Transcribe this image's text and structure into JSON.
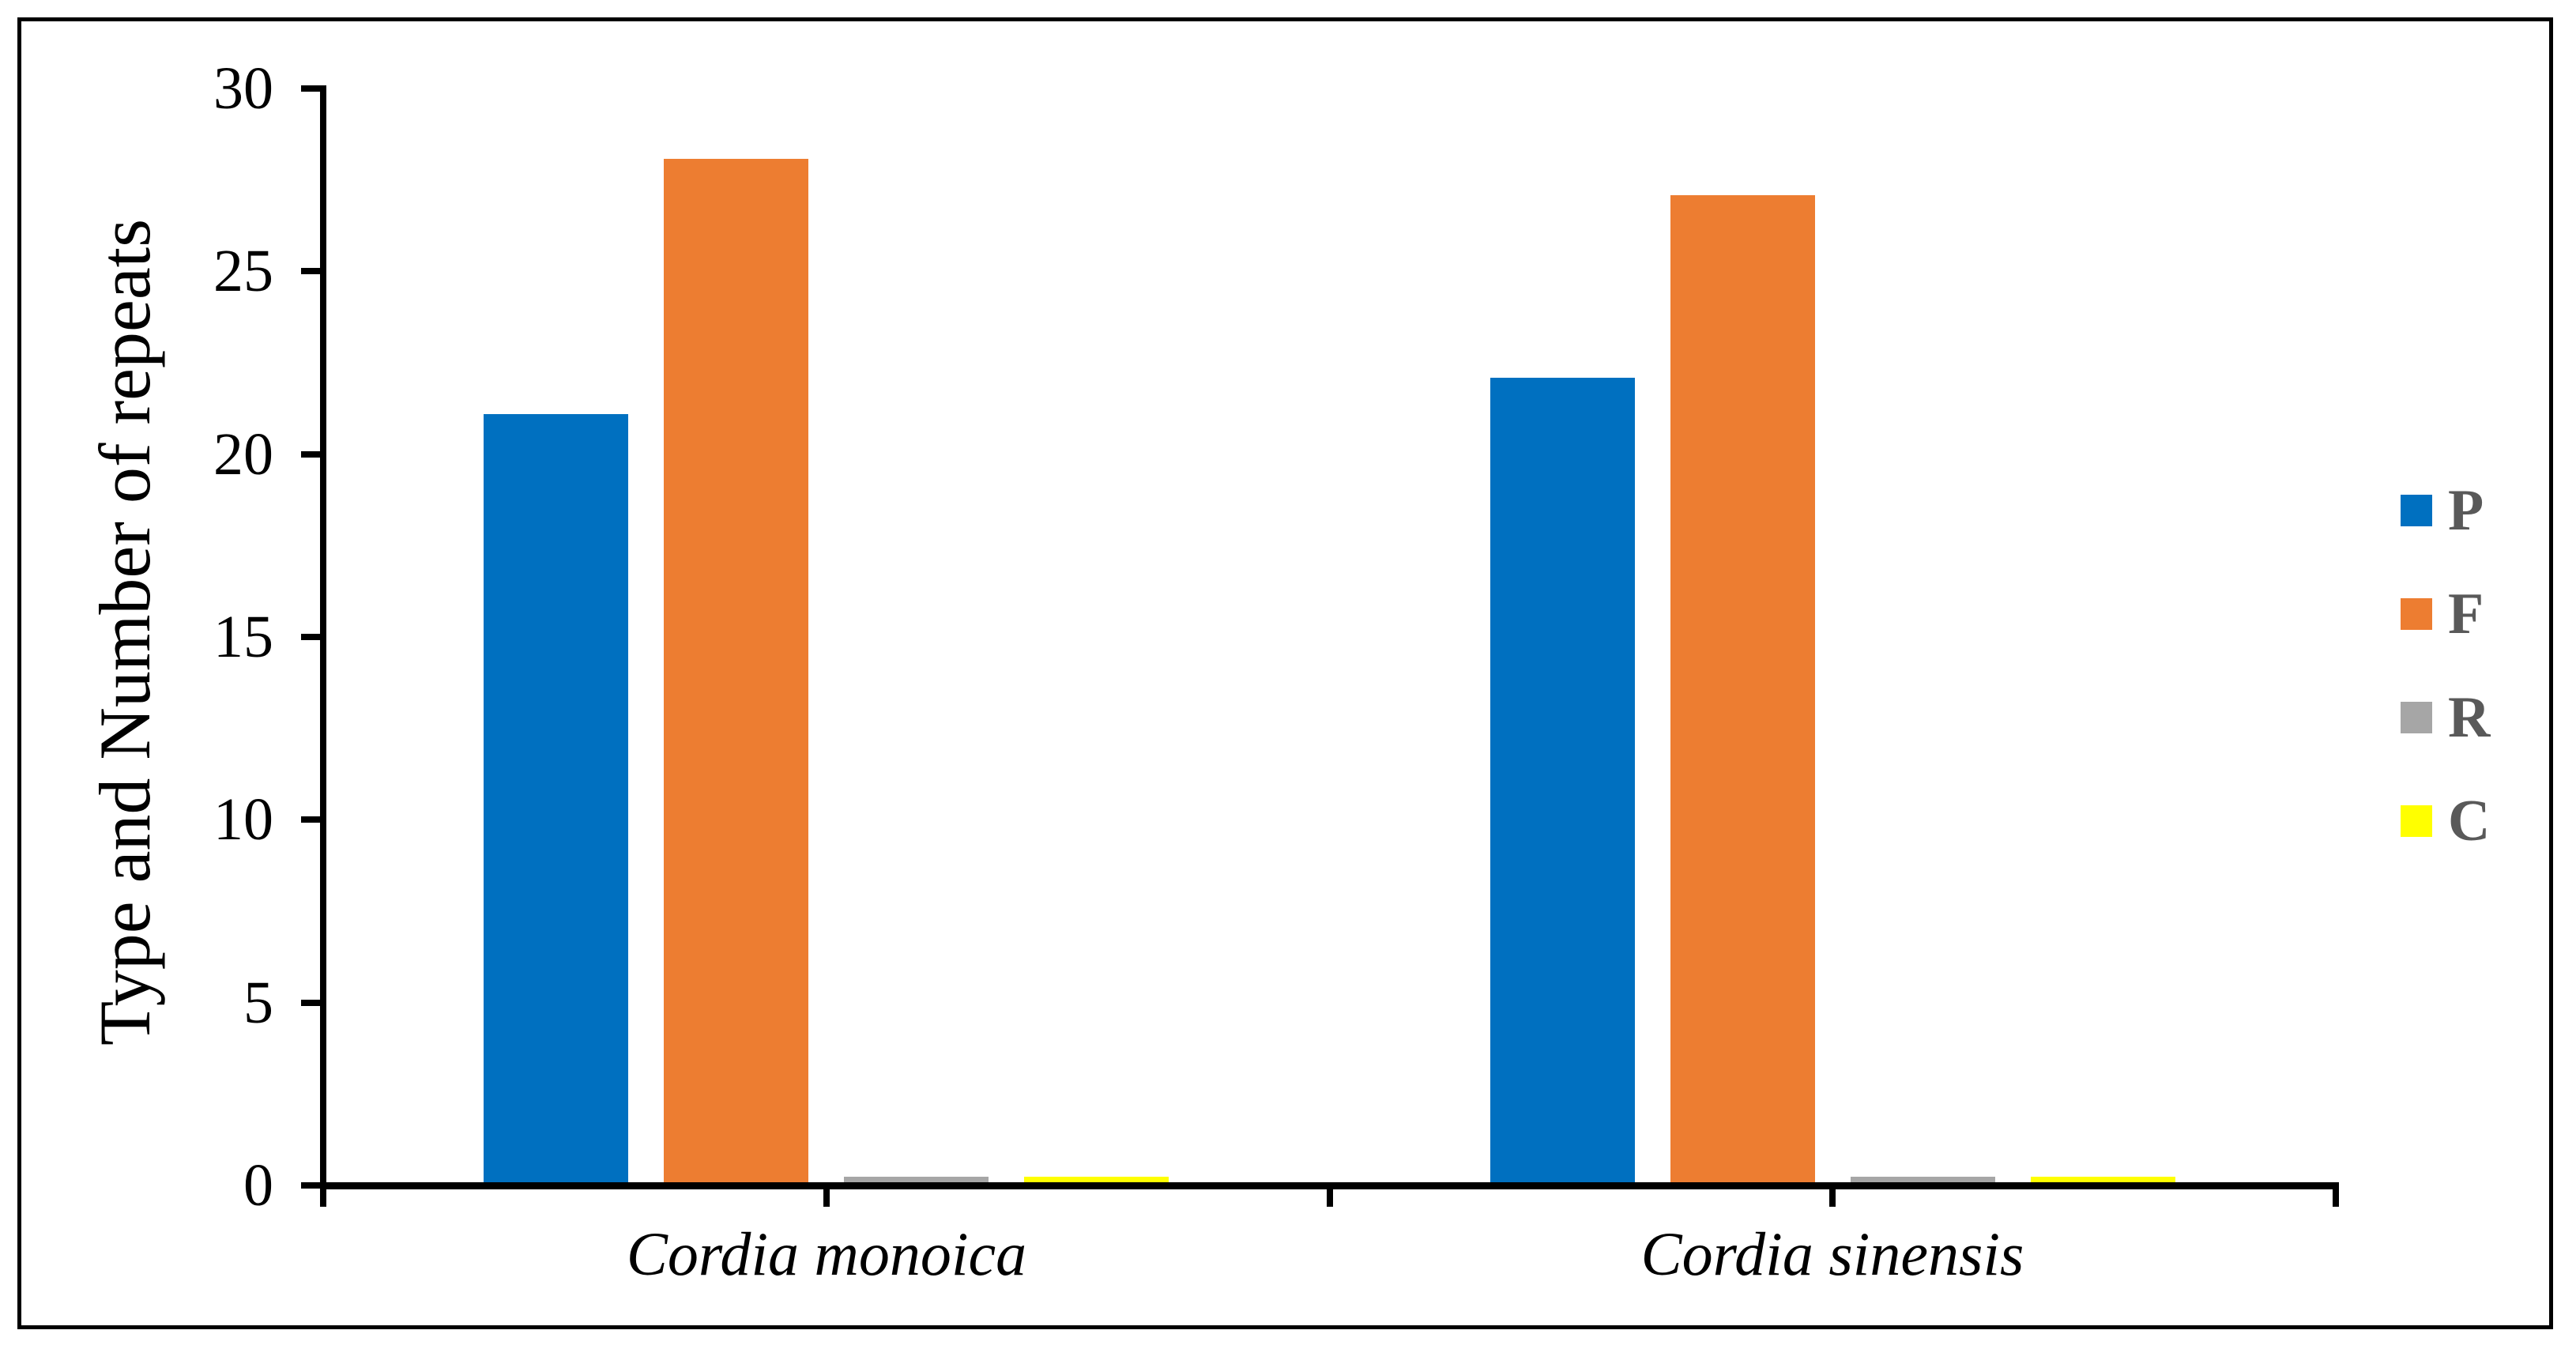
{
  "figure": {
    "background_color": "#FFFFFF",
    "border_color": "#000000",
    "axis_color": "#000000",
    "legend_text_color": "#595959"
  },
  "chart_data": {
    "type": "bar",
    "title": "",
    "xlabel": "",
    "ylabel": "Type and Number of repeats",
    "categories": [
      "Cordia monoica",
      "Cordia sinensis"
    ],
    "series": [
      {
        "name": "P",
        "color": "#0070C0",
        "values": [
          21,
          22
        ]
      },
      {
        "name": "F",
        "color": "#ED7D31",
        "values": [
          28,
          27
        ]
      },
      {
        "name": "R",
        "color": "#A6A6A6",
        "values": [
          0.15,
          0.15
        ]
      },
      {
        "name": "C",
        "color": "#FFFF00",
        "values": [
          0.15,
          0.15
        ]
      }
    ],
    "ylim": [
      0,
      30
    ],
    "yticks": [
      0,
      5,
      10,
      15,
      20,
      25,
      30
    ],
    "grid": false,
    "legend_position": "right"
  }
}
